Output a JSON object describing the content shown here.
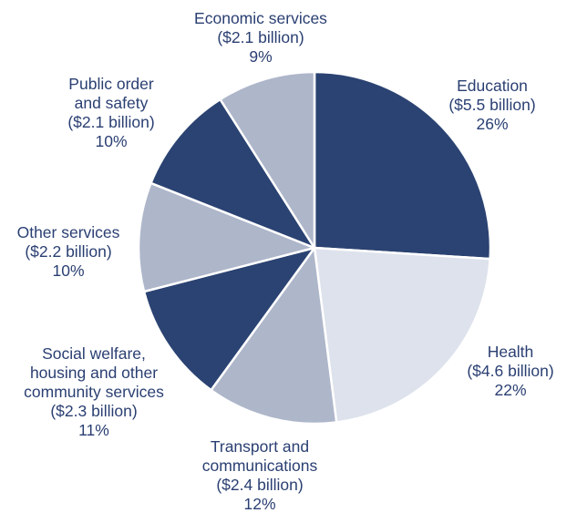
{
  "chart_data": {
    "type": "pie",
    "title": "",
    "slices": [
      {
        "lines": [
          "Education",
          "($5.5 billion)",
          "26%"
        ],
        "value": 5.5,
        "percent": 26,
        "color": "#2b4372"
      },
      {
        "lines": [
          "Health",
          "($4.6 billion)",
          "22%"
        ],
        "value": 4.6,
        "percent": 22,
        "color": "#dde2ec"
      },
      {
        "lines": [
          "Transport and",
          "communications",
          "($2.4 billion)",
          "12%"
        ],
        "value": 2.4,
        "percent": 12,
        "color": "#aeb6ca"
      },
      {
        "lines": [
          "Social welfare,",
          "housing and other",
          "community services",
          "($2.3 billion)",
          "11%"
        ],
        "value": 2.3,
        "percent": 11,
        "color": "#2b4372"
      },
      {
        "lines": [
          "Other services",
          "($2.2 billion)",
          "10%"
        ],
        "value": 2.2,
        "percent": 10,
        "color": "#aeb6ca"
      },
      {
        "lines": [
          "Public order",
          "and safety",
          "($2.1 billion)",
          "10%"
        ],
        "value": 2.1,
        "percent": 10,
        "color": "#2b4372"
      },
      {
        "lines": [
          "Economic services",
          "($2.1 billion)",
          "9%"
        ],
        "value": 2.1,
        "percent": 9,
        "color": "#aeb6ca"
      }
    ],
    "start": "12 o'clock",
    "direction": "clockwise"
  }
}
